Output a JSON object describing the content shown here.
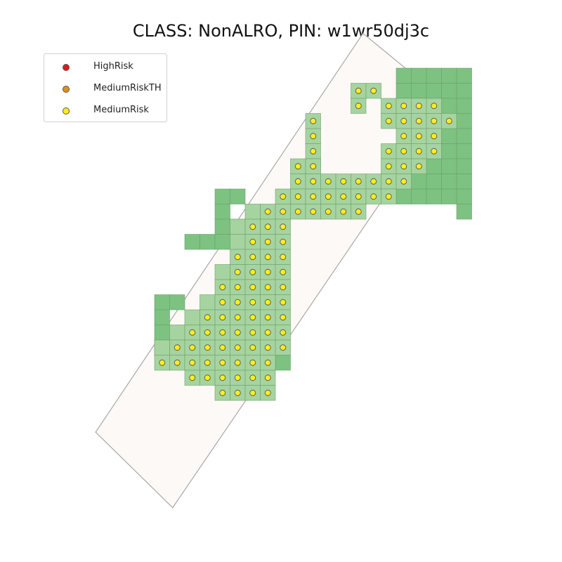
{
  "title": "CLASS: NonALRO, PIN: w1wr50dj3c",
  "legend": {
    "items": [
      {
        "label": "HighRisk",
        "color": "#e0191c"
      },
      {
        "label": "MediumRiskTH",
        "color": "#e38e1a"
      },
      {
        "label": "MediumRisk",
        "color": "#ffee1a"
      }
    ]
  },
  "colors": {
    "cell_dark": "#7dc281",
    "cell_light": "#a6d4a0",
    "cell_edge": "#6f9f6f",
    "parcel_fill": "#fdf9f6",
    "parcel_edge": "#a8a8a8",
    "point_edge": "#555555"
  },
  "map": {
    "parcel_polygon_grid": [
      [
        -3.9,
        24.1
      ],
      [
        1.2,
        29.1
      ],
      [
        19.8,
        1.8
      ],
      [
        17.7,
        0.9
      ],
      [
        13.8,
        -2.3
      ]
    ],
    "dark_cells": [
      [
        16,
        0
      ],
      [
        17,
        0
      ],
      [
        18,
        0
      ],
      [
        19,
        0
      ],
      [
        20,
        0
      ],
      [
        16,
        1
      ],
      [
        17,
        1
      ],
      [
        18,
        1
      ],
      [
        19,
        1
      ],
      [
        20,
        1
      ],
      [
        16,
        2
      ],
      [
        17,
        2
      ],
      [
        18,
        2
      ],
      [
        19,
        2
      ],
      [
        20,
        2
      ],
      [
        18,
        3
      ],
      [
        19,
        3
      ],
      [
        20,
        3
      ],
      [
        18,
        4
      ],
      [
        19,
        4
      ],
      [
        20,
        4
      ],
      [
        17,
        5
      ],
      [
        18,
        5
      ],
      [
        19,
        5
      ],
      [
        20,
        5
      ],
      [
        17,
        6
      ],
      [
        18,
        6
      ],
      [
        19,
        6
      ],
      [
        20,
        6
      ],
      [
        17,
        7
      ],
      [
        18,
        7
      ],
      [
        19,
        7
      ],
      [
        20,
        7
      ],
      [
        16,
        8
      ],
      [
        17,
        8
      ],
      [
        18,
        8
      ],
      [
        19,
        8
      ],
      [
        20,
        8
      ],
      [
        20,
        9
      ],
      [
        4,
        8
      ],
      [
        5,
        8
      ],
      [
        4,
        9
      ],
      [
        4,
        10
      ],
      [
        5,
        10
      ],
      [
        2,
        11
      ],
      [
        3,
        11
      ],
      [
        4,
        11
      ],
      [
        0,
        15
      ],
      [
        1,
        15
      ],
      [
        0,
        16
      ],
      [
        0,
        17
      ],
      [
        0,
        18
      ],
      [
        8,
        19
      ]
    ],
    "light_cells": [
      [
        13,
        1
      ],
      [
        14,
        1
      ],
      [
        13,
        2
      ],
      [
        15,
        2
      ],
      [
        16,
        2
      ],
      [
        17,
        2
      ],
      [
        18,
        2
      ],
      [
        15,
        3
      ],
      [
        16,
        3
      ],
      [
        17,
        3
      ],
      [
        18,
        3
      ],
      [
        19,
        3
      ],
      [
        10,
        3
      ],
      [
        10,
        4
      ],
      [
        10,
        5
      ],
      [
        10,
        6
      ],
      [
        16,
        4
      ],
      [
        17,
        4
      ],
      [
        18,
        4
      ],
      [
        15,
        5
      ],
      [
        16,
        5
      ],
      [
        17,
        5
      ],
      [
        18,
        5
      ],
      [
        9,
        6
      ],
      [
        10,
        6
      ],
      [
        15,
        6
      ],
      [
        16,
        6
      ],
      [
        17,
        6
      ],
      [
        9,
        7
      ],
      [
        10,
        7
      ],
      [
        11,
        7
      ],
      [
        12,
        7
      ],
      [
        13,
        7
      ],
      [
        14,
        7
      ],
      [
        15,
        7
      ],
      [
        16,
        7
      ],
      [
        8,
        8
      ],
      [
        9,
        8
      ],
      [
        10,
        8
      ],
      [
        11,
        8
      ],
      [
        12,
        8
      ],
      [
        13,
        8
      ],
      [
        14,
        8
      ],
      [
        15,
        8
      ],
      [
        6,
        9
      ],
      [
        7,
        9
      ],
      [
        8,
        9
      ],
      [
        9,
        9
      ],
      [
        10,
        9
      ],
      [
        11,
        9
      ],
      [
        12,
        9
      ],
      [
        13,
        9
      ],
      [
        5,
        10
      ],
      [
        6,
        10
      ],
      [
        7,
        10
      ],
      [
        8,
        10
      ],
      [
        5,
        11
      ],
      [
        6,
        11
      ],
      [
        7,
        11
      ],
      [
        8,
        11
      ],
      [
        5,
        12
      ],
      [
        6,
        12
      ],
      [
        7,
        12
      ],
      [
        8,
        12
      ],
      [
        4,
        13
      ],
      [
        5,
        13
      ],
      [
        6,
        13
      ],
      [
        7,
        13
      ],
      [
        8,
        13
      ],
      [
        4,
        14
      ],
      [
        5,
        14
      ],
      [
        6,
        14
      ],
      [
        7,
        14
      ],
      [
        8,
        14
      ],
      [
        3,
        15
      ],
      [
        4,
        15
      ],
      [
        5,
        15
      ],
      [
        6,
        15
      ],
      [
        7,
        15
      ],
      [
        8,
        15
      ],
      [
        2,
        16
      ],
      [
        3,
        16
      ],
      [
        4,
        16
      ],
      [
        5,
        16
      ],
      [
        6,
        16
      ],
      [
        7,
        16
      ],
      [
        8,
        16
      ],
      [
        1,
        17
      ],
      [
        2,
        17
      ],
      [
        3,
        17
      ],
      [
        4,
        17
      ],
      [
        5,
        17
      ],
      [
        6,
        17
      ],
      [
        7,
        17
      ],
      [
        8,
        17
      ],
      [
        0,
        18
      ],
      [
        1,
        18
      ],
      [
        2,
        18
      ],
      [
        3,
        18
      ],
      [
        4,
        18
      ],
      [
        5,
        18
      ],
      [
        6,
        18
      ],
      [
        7,
        18
      ],
      [
        8,
        18
      ],
      [
        0,
        19
      ],
      [
        1,
        19
      ],
      [
        2,
        19
      ],
      [
        3,
        19
      ],
      [
        4,
        19
      ],
      [
        5,
        19
      ],
      [
        6,
        19
      ],
      [
        7,
        19
      ],
      [
        2,
        20
      ],
      [
        3,
        20
      ],
      [
        4,
        20
      ],
      [
        5,
        20
      ],
      [
        6,
        20
      ],
      [
        7,
        20
      ],
      [
        4,
        21
      ],
      [
        5,
        21
      ],
      [
        6,
        21
      ],
      [
        7,
        21
      ]
    ],
    "points": [
      [
        13,
        1
      ],
      [
        14,
        1
      ],
      [
        13,
        2
      ],
      [
        15,
        2
      ],
      [
        16,
        2
      ],
      [
        17,
        2
      ],
      [
        18,
        2
      ],
      [
        10,
        3
      ],
      [
        15,
        3
      ],
      [
        16,
        3
      ],
      [
        17,
        3
      ],
      [
        18,
        3
      ],
      [
        19,
        3
      ],
      [
        10,
        4
      ],
      [
        16,
        4
      ],
      [
        17,
        4
      ],
      [
        18,
        4
      ],
      [
        10,
        5
      ],
      [
        15,
        5
      ],
      [
        16,
        5
      ],
      [
        17,
        5
      ],
      [
        18,
        5
      ],
      [
        9,
        6
      ],
      [
        10,
        6
      ],
      [
        15,
        6
      ],
      [
        16,
        6
      ],
      [
        17,
        6
      ],
      [
        9,
        7
      ],
      [
        10,
        7
      ],
      [
        11,
        7
      ],
      [
        12,
        7
      ],
      [
        13,
        7
      ],
      [
        14,
        7
      ],
      [
        15,
        7
      ],
      [
        16,
        7
      ],
      [
        8,
        8
      ],
      [
        9,
        8
      ],
      [
        10,
        8
      ],
      [
        11,
        8
      ],
      [
        12,
        8
      ],
      [
        13,
        8
      ],
      [
        14,
        8
      ],
      [
        15,
        8
      ],
      [
        7,
        9
      ],
      [
        8,
        9
      ],
      [
        9,
        9
      ],
      [
        10,
        9
      ],
      [
        11,
        9
      ],
      [
        12,
        9
      ],
      [
        13,
        9
      ],
      [
        6,
        10
      ],
      [
        7,
        10
      ],
      [
        8,
        10
      ],
      [
        6,
        11
      ],
      [
        7,
        11
      ],
      [
        8,
        11
      ],
      [
        5,
        12
      ],
      [
        6,
        12
      ],
      [
        7,
        12
      ],
      [
        8,
        12
      ],
      [
        5,
        13
      ],
      [
        6,
        13
      ],
      [
        7,
        13
      ],
      [
        8,
        13
      ],
      [
        4,
        14
      ],
      [
        5,
        14
      ],
      [
        6,
        14
      ],
      [
        7,
        14
      ],
      [
        8,
        14
      ],
      [
        4,
        15
      ],
      [
        5,
        15
      ],
      [
        6,
        15
      ],
      [
        7,
        15
      ],
      [
        8,
        15
      ],
      [
        3,
        16
      ],
      [
        4,
        16
      ],
      [
        5,
        16
      ],
      [
        6,
        16
      ],
      [
        7,
        16
      ],
      [
        8,
        16
      ],
      [
        2,
        17
      ],
      [
        3,
        17
      ],
      [
        4,
        17
      ],
      [
        5,
        17
      ],
      [
        6,
        17
      ],
      [
        7,
        17
      ],
      [
        8,
        17
      ],
      [
        1,
        18
      ],
      [
        2,
        18
      ],
      [
        3,
        18
      ],
      [
        4,
        18
      ],
      [
        5,
        18
      ],
      [
        6,
        18
      ],
      [
        7,
        18
      ],
      [
        8,
        18
      ],
      [
        0,
        19
      ],
      [
        1,
        19
      ],
      [
        2,
        19
      ],
      [
        3,
        19
      ],
      [
        4,
        19
      ],
      [
        5,
        19
      ],
      [
        6,
        19
      ],
      [
        7,
        19
      ],
      [
        2,
        20
      ],
      [
        3,
        20
      ],
      [
        4,
        20
      ],
      [
        5,
        20
      ],
      [
        6,
        20
      ],
      [
        7,
        20
      ],
      [
        4,
        21
      ],
      [
        5,
        21
      ],
      [
        6,
        21
      ],
      [
        7,
        21
      ]
    ],
    "point_class": "MediumRisk"
  }
}
